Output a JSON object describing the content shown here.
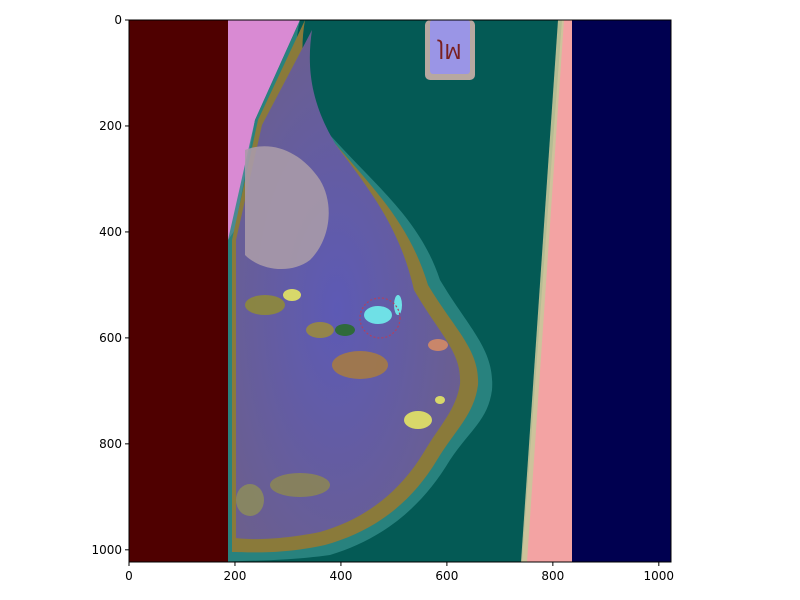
{
  "figure": {
    "x_axis": {
      "ticks": [
        0,
        200,
        400,
        600,
        800,
        1000
      ],
      "range": [
        0,
        1023
      ]
    },
    "y_axis": {
      "ticks": [
        0,
        200,
        400,
        600,
        800,
        1000
      ],
      "range": [
        0,
        1023
      ],
      "inverted": true
    },
    "image": {
      "description_labels": {
        "marker_text": "JM"
      },
      "colors": {
        "left_band": "#4f0000",
        "right_band": "#000050",
        "background_teal": "#045a55",
        "pink_strip": "#f3a3a3",
        "breast_purple": "#6a5a9c",
        "tissue_olive": "#8a7a3a",
        "highlight_yellow": "#d8d86a",
        "cyan_spot": "#6fe0e6"
      }
    }
  }
}
